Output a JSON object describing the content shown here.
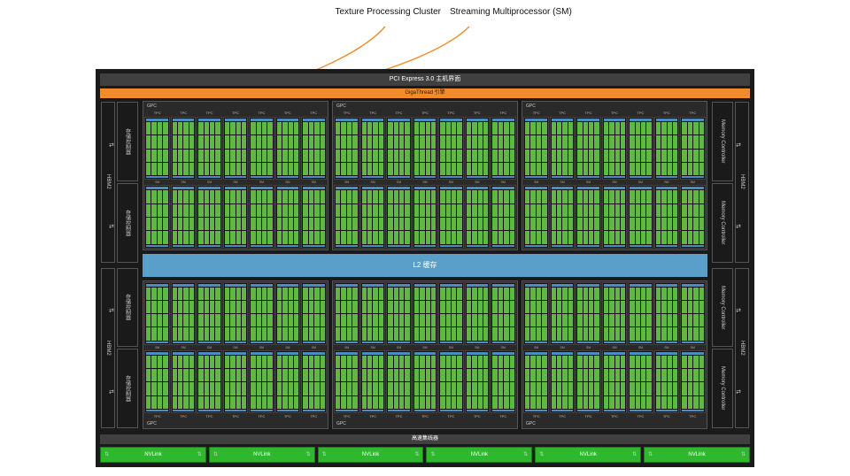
{
  "annotations": {
    "left": "Texture Processing Cluster",
    "right": "Streaming Multiprocessor (SM)"
  },
  "bars": {
    "pci": "PCI Express 3.0 主机界面",
    "gigathread": "GigaThread 引擎",
    "l2": "L2 缓存",
    "highspeed": "高速集线器",
    "nvlink": "NVLink"
  },
  "side": {
    "hbm": "HBM2",
    "mc_left": "存储控制器",
    "mc_right": "Memory Controller"
  },
  "labels": {
    "gpc": "GPC",
    "tpc": "TPC",
    "sm": "SM"
  },
  "layout": {
    "gpcs_per_row": 3,
    "tpcs_per_gpc": 7,
    "sm_rows_per_gpc": 2,
    "cores_per_sm_cols": 4,
    "cores_per_sm_rows": 4,
    "nvlinks": 6,
    "mc_per_side_half": 2,
    "side_halves": 2
  },
  "colors": {
    "chip_bg": "#1a1a1a",
    "bar_gray": "#404040",
    "gigathread": "#f28c28",
    "l2": "#5a9fc9",
    "core_green": "#5fb83f",
    "sm_blue": "#4a8fc4",
    "nvlink_green": "#2db82d",
    "arrow": "#f28c28"
  },
  "arrow_paths": [
    "M 435 30 C 400 70, 300 105, 180 134",
    "M 530 30 C 480 80, 320 110, 210 134"
  ]
}
